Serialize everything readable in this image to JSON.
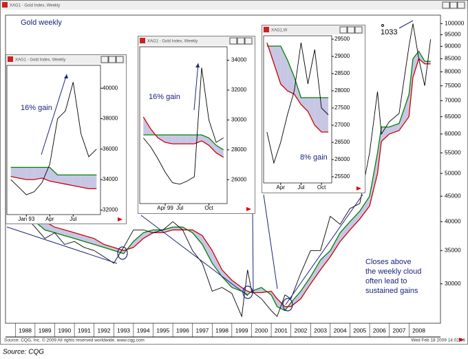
{
  "chart_data": [
    {
      "type": "line",
      "window_title": "XAG1 - Gold Index, Weekly",
      "title": "Gold weekly",
      "log_y": true,
      "x": [
        1987.6,
        1988.0,
        1988.5,
        1989.0,
        1989.5,
        1990.0,
        1990.5,
        1991.0,
        1991.5,
        1992.0,
        1992.5,
        1993.0,
        1993.5,
        1994.0,
        1994.5,
        1995.0,
        1995.5,
        1996.0,
        1996.5,
        1997.0,
        1997.5,
        1998.0,
        1998.5,
        1999.0,
        1999.5,
        1999.8,
        2000.0,
        2000.5,
        2001.0,
        2001.3,
        2001.7,
        2002.0,
        2002.5,
        2003.0,
        2003.5,
        2004.0,
        2004.5,
        2005.0,
        2005.5,
        2006.0,
        2006.4,
        2006.6,
        2007.0,
        2007.5,
        2008.0,
        2008.2,
        2008.5,
        2008.8,
        2009.1
      ],
      "series": [
        {
          "color": "#000000",
          "values": [
            44000,
            43000,
            41000,
            39000,
            37000,
            38000,
            36000,
            36500,
            35500,
            35000,
            34000,
            33000,
            35500,
            38500,
            38500,
            38000,
            38500,
            40000,
            38500,
            35000,
            33000,
            29000,
            29500,
            28700,
            25800,
            32000,
            29000,
            28000,
            26500,
            25800,
            28500,
            28000,
            31500,
            35000,
            35000,
            41000,
            39500,
            42500,
            43500,
            55000,
            73000,
            60000,
            63500,
            66000,
            90000,
            100000,
            85000,
            75000,
            93000
          ]
        },
        {
          "color": "#008000",
          "values": [
            43000,
            42500,
            42000,
            40000,
            38500,
            38000,
            37500,
            37000,
            36500,
            36000,
            35500,
            35000,
            34500,
            36500,
            38000,
            38500,
            38500,
            39000,
            39000,
            38000,
            36000,
            33000,
            31000,
            29500,
            29000,
            28500,
            29000,
            29500,
            28500,
            27000,
            26500,
            27500,
            29000,
            31000,
            33500,
            35000,
            38000,
            40000,
            42000,
            45000,
            55000,
            62000,
            62000,
            63000,
            72000,
            85000,
            88000,
            84000,
            84000
          ]
        },
        {
          "color": "#cc0000",
          "values": [
            44000,
            43500,
            43000,
            41500,
            40000,
            39000,
            38500,
            38000,
            37500,
            37000,
            36000,
            35500,
            35000,
            35500,
            37000,
            38000,
            38000,
            38500,
            38500,
            38500,
            37500,
            35000,
            32000,
            30500,
            29500,
            29000,
            28800,
            28800,
            29000,
            28000,
            27000,
            27000,
            28000,
            30000,
            32000,
            34000,
            36500,
            38500,
            40500,
            43000,
            50000,
            58000,
            60000,
            61000,
            65000,
            78000,
            85000,
            83000,
            83000
          ]
        }
      ],
      "xlim": [
        1987.5,
        2009.6
      ],
      "xticks": [
        1988,
        1989,
        1990,
        1991,
        1992,
        1993,
        1994,
        1995,
        1996,
        1997,
        1998,
        1999,
        2000,
        2001,
        2002,
        2003,
        2004,
        2005,
        2006,
        2007,
        2008
      ],
      "ylim": [
        25000,
        104000
      ],
      "yticks": [
        30000,
        35000,
        40000,
        45000,
        50000,
        55000,
        60000,
        65000,
        70000,
        75000,
        80000,
        85000,
        90000,
        95000,
        100000
      ],
      "peak_label": "1033",
      "note": [
        "Closes above",
        "the weekly cloud",
        "often lead to",
        "sustained gains"
      ]
    },
    {
      "type": "line",
      "window_title": "XAG1 - Gold Index, Weekly",
      "annotation": "16% gain",
      "categories": [
        null,
        null,
        "Jan 93",
        null,
        null,
        "Apr",
        null,
        null,
        "Jul",
        null,
        null,
        null
      ],
      "series": [
        {
          "color": "#000000",
          "values": [
            34000,
            33500,
            33000,
            33200,
            33800,
            35000,
            38000,
            38500,
            40400,
            37000,
            35500,
            36000
          ]
        },
        {
          "color": "#008000",
          "values": [
            34800,
            34800,
            34800,
            34800,
            34800,
            34800,
            34300,
            34300,
            34300,
            34300,
            34300,
            34300
          ]
        },
        {
          "color": "#cc0000",
          "values": [
            34200,
            34100,
            34000,
            34000,
            34100,
            33900,
            33800,
            33700,
            33600,
            33500,
            33400,
            33400
          ]
        }
      ],
      "ylim": [
        31700,
        41500
      ],
      "yticks": [
        32000,
        34000,
        36000,
        38000,
        40000
      ]
    },
    {
      "type": "line",
      "window_title": "XAG1 - Gold Index, Weekly",
      "annotation": "16% gain",
      "categories": [
        null,
        null,
        null,
        "Apr 99",
        null,
        "Jul",
        null,
        null,
        null,
        "Oct",
        null,
        null
      ],
      "series": [
        {
          "color": "#000000",
          "values": [
            28800,
            28200,
            27400,
            26500,
            25800,
            25700,
            25900,
            26200,
            33500,
            30000,
            28500,
            28800
          ]
        },
        {
          "color": "#008000",
          "values": [
            29000,
            29000,
            29000,
            29000,
            29000,
            29000,
            29000,
            29000,
            29000,
            28800,
            28300,
            28000
          ]
        },
        {
          "color": "#cc0000",
          "values": [
            30200,
            29400,
            28800,
            28500,
            28400,
            28400,
            28400,
            28400,
            28600,
            28300,
            27800,
            27500
          ]
        }
      ],
      "ylim": [
        24400,
        34900
      ],
      "yticks": [
        26000,
        28000,
        30000,
        32000,
        34000
      ]
    },
    {
      "type": "line",
      "window_title": "XAG1,W",
      "annotation": "8% gain",
      "categories": [
        null,
        null,
        "Apr",
        null,
        null,
        "Jul",
        null,
        null,
        "Oct",
        null
      ],
      "series": [
        {
          "color": "#000000",
          "values": [
            26800,
            25900,
            26500,
            27300,
            28000,
            29400,
            28200,
            29200,
            27500,
            27300
          ]
        },
        {
          "color": "#008000",
          "values": [
            29300,
            29300,
            29300,
            28900,
            28400,
            27800,
            27800,
            27800,
            27800,
            27800
          ]
        },
        {
          "color": "#cc0000",
          "values": [
            29400,
            28800,
            28200,
            28000,
            27900,
            27600,
            27400,
            27000,
            26800,
            26800
          ]
        }
      ],
      "ylim": [
        25320,
        29600
      ],
      "yticks": [
        25500,
        26000,
        26500,
        27000,
        27500,
        28000,
        28500,
        29000,
        29500
      ]
    }
  ],
  "footer": {
    "source": "Source: CQG, Inc. © 2009 All rights reserved worldwide. www.cqg.com",
    "timestamp": "Wed Feb 18 2009 14:02:06"
  },
  "caption": "Source: CQG"
}
